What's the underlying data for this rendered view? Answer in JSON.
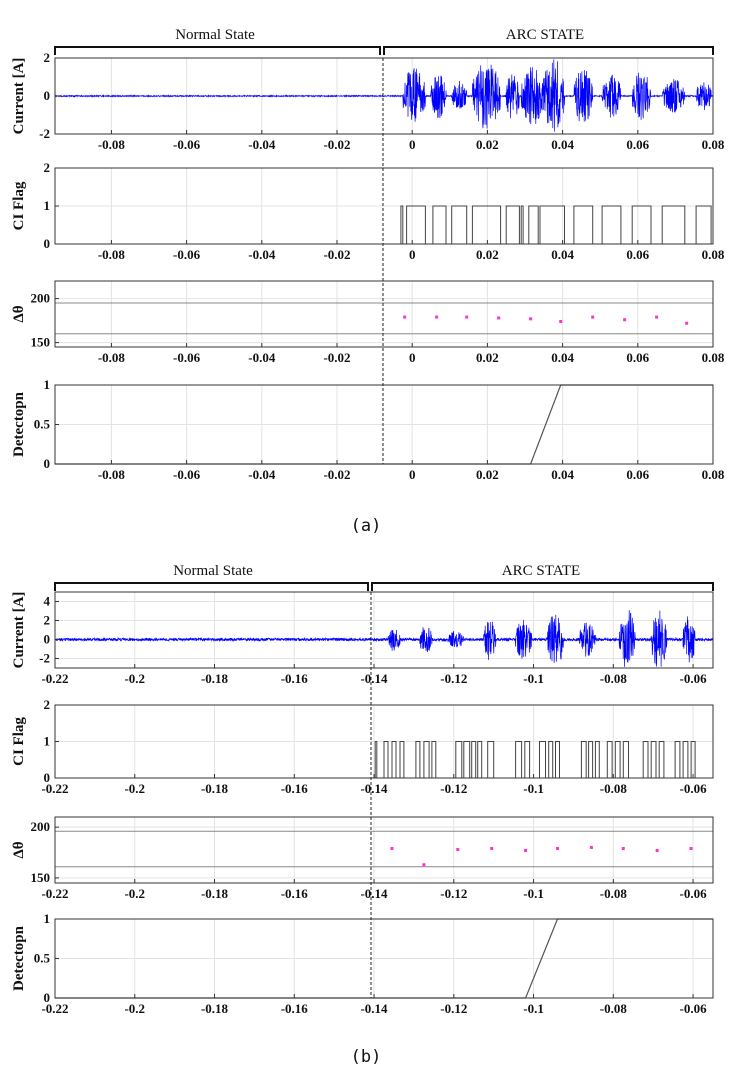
{
  "figure": {
    "panels": [
      {
        "id": "a",
        "caption": "(a)",
        "state_labels": {
          "normal": "Normal State",
          "arc": "ARC STATE"
        },
        "arc_start": -0.003
      },
      {
        "id": "b",
        "caption": "(b)",
        "state_labels": {
          "normal": "Normal State",
          "arc": "ARC STATE"
        },
        "arc_start": -0.14
      }
    ]
  },
  "chart_data": [
    {
      "panel": "a",
      "type": "line",
      "ylabel": "Current [A]",
      "xlim": [
        -0.095,
        0.08
      ],
      "ylim": [
        -2,
        2
      ],
      "xticks": [
        "-0.08",
        "-0.06",
        "-0.04",
        "-0.02",
        "0",
        "0.02",
        "0.04",
        "0.06",
        "0.08"
      ],
      "xtick_values": [
        -0.08,
        -0.06,
        -0.04,
        -0.02,
        0,
        0.02,
        0.04,
        0.06,
        0.08
      ],
      "yticks": [
        "-2",
        "0",
        "2"
      ],
      "ytick_values": [
        -2,
        0,
        2
      ],
      "grid": true,
      "series": [
        {
          "color": "#0000ff",
          "signal": "noisy current",
          "normal_amplitude": 0.03,
          "bursts": [
            {
              "start": -0.0025,
              "end": 0.0035,
              "amplitude": 1.5
            },
            {
              "start": 0.005,
              "end": 0.009,
              "amplitude": 1.2
            },
            {
              "start": 0.0105,
              "end": 0.0145,
              "amplitude": 0.8
            },
            {
              "start": 0.016,
              "end": 0.0235,
              "amplitude": 1.8
            },
            {
              "start": 0.025,
              "end": 0.0285,
              "amplitude": 1.3
            },
            {
              "start": 0.029,
              "end": 0.035,
              "amplitude": 1.6
            },
            {
              "start": 0.0345,
              "end": 0.0405,
              "amplitude": 2.0
            },
            {
              "start": 0.043,
              "end": 0.048,
              "amplitude": 1.5
            },
            {
              "start": 0.0505,
              "end": 0.0555,
              "amplitude": 1.2
            },
            {
              "start": 0.0585,
              "end": 0.0635,
              "amplitude": 1.3
            },
            {
              "start": 0.0665,
              "end": 0.0725,
              "amplitude": 0.9
            },
            {
              "start": 0.0755,
              "end": 0.0795,
              "amplitude": 0.8
            }
          ]
        }
      ]
    },
    {
      "panel": "a",
      "type": "line",
      "ylabel": "CI Flag",
      "xlim": [
        -0.095,
        0.08
      ],
      "ylim": [
        0,
        2
      ],
      "xticks": [
        "-0.08",
        "-0.06",
        "-0.04",
        "-0.02",
        "0",
        "0.02",
        "0.04",
        "0.06",
        "0.08"
      ],
      "xtick_values": [
        -0.08,
        -0.06,
        -0.04,
        -0.02,
        0,
        0.02,
        0.04,
        0.06,
        0.08
      ],
      "yticks": [
        "0",
        "1",
        "2"
      ],
      "ytick_values": [
        0,
        1,
        2
      ],
      "grid": true,
      "series": [
        {
          "color": "#444444",
          "pulses": [
            [
              -0.003,
              -0.0025
            ],
            [
              -0.0015,
              0.0035
            ],
            [
              0.0055,
              0.009
            ],
            [
              0.0105,
              0.0145
            ],
            [
              0.016,
              0.0235
            ],
            [
              0.025,
              0.0285
            ],
            [
              0.029,
              0.0295
            ],
            [
              0.031,
              0.0335
            ],
            [
              0.034,
              0.0405
            ],
            [
              0.043,
              0.048
            ],
            [
              0.0505,
              0.0555
            ],
            [
              0.0585,
              0.0635
            ],
            [
              0.0665,
              0.0725
            ],
            [
              0.0755,
              0.0795
            ]
          ]
        }
      ]
    },
    {
      "panel": "a",
      "type": "scatter",
      "ylabel": "Δθ",
      "xlim": [
        -0.095,
        0.08
      ],
      "ylim": [
        145,
        220
      ],
      "xticks": [
        "-0.08",
        "-0.06",
        "-0.04",
        "-0.02",
        "0",
        "0.02",
        "0.04",
        "0.06",
        "0.08"
      ],
      "xtick_values": [
        -0.08,
        -0.06,
        -0.04,
        -0.02,
        0,
        0.02,
        0.04,
        0.06,
        0.08
      ],
      "yticks": [
        "150",
        "200"
      ],
      "ytick_values": [
        150,
        200
      ],
      "grid": true,
      "threshold_lines": [
        195,
        160
      ],
      "series": [
        {
          "color": "#ff33cc",
          "x": [
            -0.002,
            0.0065,
            0.0145,
            0.023,
            0.0315,
            0.0395,
            0.048,
            0.0565,
            0.065,
            0.073
          ],
          "y": [
            179,
            179,
            179,
            178,
            177,
            174,
            179,
            176,
            179,
            172
          ]
        }
      ]
    },
    {
      "panel": "a",
      "type": "line",
      "ylabel": "Detectopn",
      "xlim": [
        -0.095,
        0.08
      ],
      "ylim": [
        0,
        1
      ],
      "xticks": [
        "-0.08",
        "-0.06",
        "-0.04",
        "-0.02",
        "0",
        "0.02",
        "0.04",
        "0.06",
        "0.08"
      ],
      "xtick_values": [
        -0.08,
        -0.06,
        -0.04,
        -0.02,
        0,
        0.02,
        0.04,
        0.06,
        0.08
      ],
      "yticks": [
        "0",
        "0.5",
        "1"
      ],
      "ytick_values": [
        0,
        0.5,
        1
      ],
      "grid": true,
      "series": [
        {
          "color": "#555555",
          "x": [
            -0.095,
            0.0315,
            0.0395,
            0.08
          ],
          "y": [
            0,
            0,
            1,
            1
          ]
        }
      ]
    },
    {
      "panel": "b",
      "type": "line",
      "ylabel": "Current [A]",
      "xlim": [
        -0.22,
        -0.055
      ],
      "ylim": [
        -3,
        5
      ],
      "xticks": [
        "-0.22",
        "-0.2",
        "-0.18",
        "-0.16",
        "-0.14",
        "-0.12",
        "-0.1",
        "-0.08",
        "-0.06"
      ],
      "xtick_values": [
        -0.22,
        -0.2,
        -0.18,
        -0.16,
        -0.14,
        -0.12,
        -0.1,
        -0.08,
        -0.06
      ],
      "yticks": [
        "-2",
        "0",
        "2",
        "4"
      ],
      "ytick_values": [
        -2,
        0,
        2,
        4
      ],
      "grid": true,
      "series": [
        {
          "color": "#0000ff",
          "signal": "noisy current",
          "normal_amplitude": 0.15,
          "bursts": [
            {
              "start": -0.1365,
              "end": -0.1335,
              "amplitude": 1.3
            },
            {
              "start": -0.1285,
              "end": -0.1255,
              "amplitude": 1.6
            },
            {
              "start": -0.1215,
              "end": -0.1175,
              "amplitude": 0.9
            },
            {
              "start": -0.1125,
              "end": -0.1095,
              "amplitude": 2.2
            },
            {
              "start": -0.1045,
              "end": -0.1005,
              "amplitude": 2.1
            },
            {
              "start": -0.0965,
              "end": -0.0925,
              "amplitude": 2.9
            },
            {
              "start": -0.0885,
              "end": -0.0845,
              "amplitude": 1.9
            },
            {
              "start": -0.0785,
              "end": -0.0745,
              "amplitude": 3.2
            },
            {
              "start": -0.0705,
              "end": -0.0665,
              "amplitude": 3.1
            },
            {
              "start": -0.0625,
              "end": -0.0595,
              "amplitude": 2.9
            }
          ]
        }
      ]
    },
    {
      "panel": "b",
      "type": "line",
      "ylabel": "CI Flag",
      "xlim": [
        -0.22,
        -0.055
      ],
      "ylim": [
        0,
        2
      ],
      "xticks": [
        "-0.22",
        "-0.2",
        "-0.18",
        "-0.16",
        "-0.14",
        "-0.12",
        "-0.1",
        "-0.08",
        "-0.06"
      ],
      "xtick_values": [
        -0.22,
        -0.2,
        -0.18,
        -0.16,
        -0.14,
        -0.12,
        -0.1,
        -0.08,
        -0.06
      ],
      "yticks": [
        "0",
        "1",
        "2"
      ],
      "ytick_values": [
        0,
        1,
        2
      ],
      "grid": true,
      "series": [
        {
          "color": "#444444",
          "pulses": [
            [
              -0.1397,
              -0.1393
            ],
            [
              -0.1375,
              -0.1365
            ],
            [
              -0.1355,
              -0.1345
            ],
            [
              -0.1335,
              -0.1325
            ],
            [
              -0.1295,
              -0.1285
            ],
            [
              -0.1275,
              -0.1262
            ],
            [
              -0.1255,
              -0.1245
            ],
            [
              -0.1195,
              -0.118
            ],
            [
              -0.1175,
              -0.116
            ],
            [
              -0.1155,
              -0.1145
            ],
            [
              -0.114,
              -0.113
            ],
            [
              -0.1115,
              -0.11
            ],
            [
              -0.1045,
              -0.103
            ],
            [
              -0.1022,
              -0.101
            ],
            [
              -0.0985,
              -0.097
            ],
            [
              -0.0962,
              -0.0952
            ],
            [
              -0.0945,
              -0.0935
            ],
            [
              -0.088,
              -0.0868
            ],
            [
              -0.0862,
              -0.0852
            ],
            [
              -0.0845,
              -0.0835
            ],
            [
              -0.0815,
              -0.0803
            ],
            [
              -0.0795,
              -0.0783
            ],
            [
              -0.0775,
              -0.0762
            ],
            [
              -0.0725,
              -0.0713
            ],
            [
              -0.0705,
              -0.0693
            ],
            [
              -0.0685,
              -0.0673
            ],
            [
              -0.0645,
              -0.0633
            ],
            [
              -0.0625,
              -0.0613
            ],
            [
              -0.0605,
              -0.0595
            ]
          ]
        }
      ]
    },
    {
      "panel": "b",
      "type": "scatter",
      "ylabel": "Δθ",
      "xlim": [
        -0.22,
        -0.055
      ],
      "ylim": [
        145,
        210
      ],
      "xticks": [
        "-0.22",
        "-0.2",
        "-0.18",
        "-0.16",
        "-0.14",
        "-0.12",
        "-0.1",
        "-0.08",
        "-0.06"
      ],
      "xtick_values": [
        -0.22,
        -0.2,
        -0.18,
        -0.16,
        -0.14,
        -0.12,
        -0.1,
        -0.08,
        -0.06
      ],
      "yticks": [
        "150",
        "200"
      ],
      "ytick_values": [
        150,
        200
      ],
      "grid": true,
      "threshold_lines": [
        196,
        161
      ],
      "series": [
        {
          "color": "#ff33cc",
          "x": [
            -0.1355,
            -0.1275,
            -0.119,
            -0.1105,
            -0.102,
            -0.094,
            -0.0855,
            -0.0775,
            -0.069,
            -0.0605
          ],
          "y": [
            179,
            163,
            178,
            179,
            177,
            179,
            180,
            179,
            177,
            179
          ]
        }
      ]
    },
    {
      "panel": "b",
      "type": "line",
      "ylabel": "Detectopn",
      "xlim": [
        -0.22,
        -0.055
      ],
      "ylim": [
        0,
        1
      ],
      "xticks": [
        "-0.22",
        "-0.2",
        "-0.18",
        "-0.16",
        "-0.14",
        "-0.12",
        "-0.1",
        "-0.08",
        "-0.06"
      ],
      "xtick_values": [
        -0.22,
        -0.2,
        -0.18,
        -0.16,
        -0.14,
        -0.12,
        -0.1,
        -0.08,
        -0.06
      ],
      "yticks": [
        "0",
        "0.5",
        "1"
      ],
      "ytick_values": [
        0,
        0.5,
        1
      ],
      "grid": true,
      "series": [
        {
          "color": "#555555",
          "x": [
            -0.22,
            -0.102,
            -0.094,
            -0.055
          ],
          "y": [
            0,
            0,
            1,
            1
          ]
        }
      ]
    }
  ]
}
